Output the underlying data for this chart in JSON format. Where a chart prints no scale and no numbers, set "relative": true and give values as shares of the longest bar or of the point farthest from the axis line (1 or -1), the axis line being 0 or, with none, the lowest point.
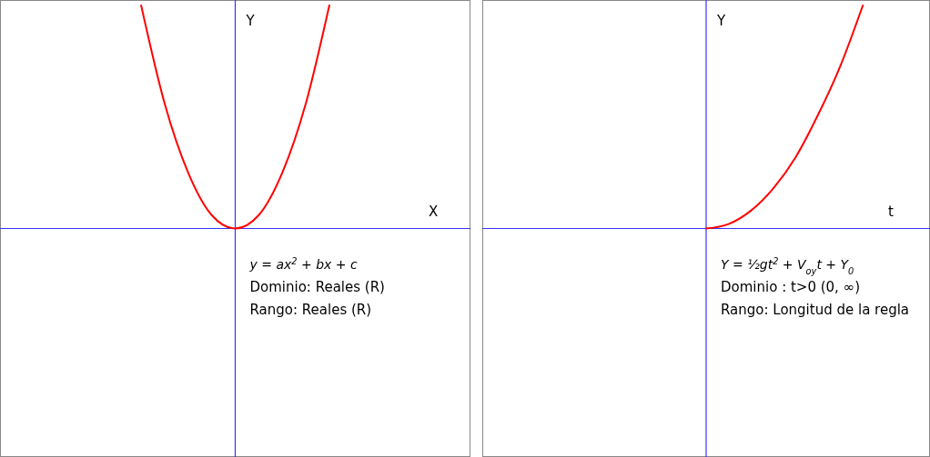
{
  "chart_data": [
    {
      "type": "line",
      "relative": true,
      "xlabel": "X",
      "ylabel": "Y",
      "categories": [
        null,
        null,
        null,
        null,
        null,
        null,
        null,
        null,
        null,
        null,
        null,
        null,
        null,
        null,
        null,
        null,
        null,
        null,
        null,
        null,
        null
      ],
      "series": [
        {
          "color": "#ff0000",
          "values": [
            null,
            null,
            null,
            null,
            null,
            null,
            1,
            0.56,
            0.25,
            0.06,
            0,
            0.06,
            0.25,
            0.56,
            1,
            null,
            null,
            null,
            null,
            null,
            null
          ]
        }
      ],
      "annotations": [
        "y = ax$^{2}$ + bx + c",
        "Dominio: Reales (R)",
        "Rango: Reales (R)"
      ]
    },
    {
      "type": "line",
      "relative": true,
      "xlabel": "t",
      "ylabel": "Y",
      "categories": [
        null,
        null,
        null,
        null,
        null,
        null,
        null,
        null,
        null,
        null,
        null,
        null,
        null,
        null,
        null,
        null,
        null,
        null,
        null,
        null,
        null
      ],
      "series": [
        {
          "color": "#ff0000",
          "values": [
            null,
            null,
            null,
            null,
            null,
            null,
            null,
            null,
            null,
            null,
            0,
            0.02,
            0.08,
            0.18,
            0.32,
            0.51,
            0.73,
            1,
            null,
            null,
            null
          ]
        }
      ],
      "annotations": [
        "Y = ½gt$^{2}$ + V$_{oy}$t + Y$_{0}$",
        "Dominio : t>0 (0, ∞)",
        "Rango: Longitud de la regla"
      ]
    }
  ]
}
